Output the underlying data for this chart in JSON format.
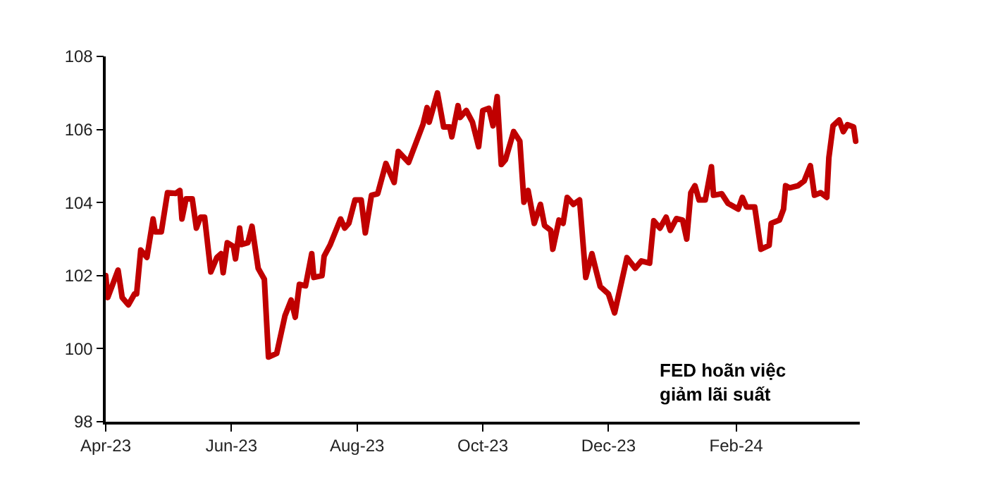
{
  "chart_data": {
    "type": "line",
    "x": [
      "2023-04-01",
      "2023-04-02",
      "2023-04-07",
      "2023-04-09",
      "2023-04-12",
      "2023-04-15",
      "2023-04-16",
      "2023-04-18",
      "2023-04-21",
      "2023-04-24",
      "2023-04-25",
      "2023-04-28",
      "2023-05-01",
      "2023-05-05",
      "2023-05-07",
      "2023-05-08",
      "2023-05-10",
      "2023-05-13",
      "2023-05-15",
      "2023-05-17",
      "2023-05-19",
      "2023-05-22",
      "2023-05-25",
      "2023-05-27",
      "2023-05-28",
      "2023-05-30",
      "2023-06-02",
      "2023-06-03",
      "2023-06-05",
      "2023-06-06",
      "2023-06-09",
      "2023-06-11",
      "2023-06-14",
      "2023-06-17",
      "2023-06-19",
      "2023-06-23",
      "2023-06-27",
      "2023-06-30",
      "2023-07-02",
      "2023-07-04",
      "2023-07-07",
      "2023-07-10",
      "2023-07-11",
      "2023-07-15",
      "2023-07-16",
      "2023-07-19",
      "2023-07-24",
      "2023-07-26",
      "2023-07-28",
      "2023-07-31",
      "2023-08-03",
      "2023-08-05",
      "2023-08-08",
      "2023-08-11",
      "2023-08-15",
      "2023-08-19",
      "2023-08-21",
      "2023-08-26",
      "2023-09-02",
      "2023-09-04",
      "2023-09-05",
      "2023-09-09",
      "2023-09-12",
      "2023-09-15",
      "2023-09-16",
      "2023-09-19",
      "2023-09-20",
      "2023-09-23",
      "2023-09-26",
      "2023-09-29",
      "2023-10-01",
      "2023-10-04",
      "2023-10-06",
      "2023-10-08",
      "2023-10-10",
      "2023-10-12",
      "2023-10-16",
      "2023-10-19",
      "2023-10-21",
      "2023-10-23",
      "2023-10-26",
      "2023-10-29",
      "2023-10-31",
      "2023-11-03",
      "2023-11-04",
      "2023-11-07",
      "2023-11-09",
      "2023-11-11",
      "2023-11-14",
      "2023-11-17",
      "2023-11-20",
      "2023-11-23",
      "2023-11-25",
      "2023-11-27",
      "2023-12-01",
      "2023-12-04",
      "2023-12-10",
      "2023-12-14",
      "2023-12-17",
      "2023-12-21",
      "2023-12-23",
      "2023-12-26",
      "2023-12-29",
      "2023-12-31",
      "2024-01-03",
      "2024-01-06",
      "2024-01-08",
      "2024-01-10",
      "2024-01-12",
      "2024-01-14",
      "2024-01-17",
      "2024-01-20",
      "2024-01-21",
      "2024-01-25",
      "2024-01-28",
      "2024-02-02",
      "2024-02-04",
      "2024-02-06",
      "2024-02-10",
      "2024-02-13",
      "2024-02-17",
      "2024-02-18",
      "2024-02-22",
      "2024-02-24",
      "2024-02-25",
      "2024-02-27",
      "2024-03-02",
      "2024-03-05",
      "2024-03-08",
      "2024-03-10",
      "2024-03-13",
      "2024-03-16",
      "2024-03-17",
      "2024-03-19",
      "2024-03-22",
      "2024-03-24",
      "2024-03-26",
      "2024-03-29",
      "2024-03-30"
    ],
    "series": [
      {
        "color": "#c00000",
        "values": [
          102.0,
          101.4,
          102.15,
          101.4,
          101.2,
          101.5,
          101.5,
          102.7,
          102.5,
          103.55,
          103.2,
          103.2,
          104.27,
          104.25,
          104.33,
          103.55,
          104.1,
          104.1,
          103.3,
          103.6,
          103.6,
          102.1,
          102.5,
          102.6,
          102.08,
          102.9,
          102.8,
          102.46,
          103.3,
          102.85,
          102.9,
          103.35,
          102.2,
          101.9,
          99.77,
          99.87,
          100.9,
          101.33,
          100.86,
          101.76,
          101.72,
          102.6,
          101.95,
          102.0,
          102.53,
          102.85,
          103.55,
          103.3,
          103.43,
          104.07,
          104.07,
          103.17,
          104.2,
          104.24,
          105.07,
          104.55,
          105.4,
          105.1,
          106.14,
          106.6,
          106.2,
          107.0,
          106.07,
          106.07,
          105.8,
          106.65,
          106.33,
          106.52,
          106.2,
          105.53,
          106.52,
          106.58,
          106.1,
          106.9,
          105.04,
          105.17,
          105.94,
          105.68,
          104.01,
          104.33,
          103.43,
          103.95,
          103.37,
          103.24,
          102.72,
          103.52,
          103.43,
          104.14,
          103.95,
          104.07,
          101.95,
          102.6,
          102.14,
          101.7,
          101.5,
          100.98,
          102.49,
          102.2,
          102.4,
          102.34,
          103.5,
          103.3,
          103.6,
          103.24,
          103.56,
          103.52,
          103.0,
          104.27,
          104.46,
          104.07,
          104.07,
          104.98,
          104.2,
          104.24,
          103.98,
          103.82,
          104.14,
          103.88,
          103.88,
          102.72,
          102.83,
          103.43,
          103.52,
          103.82,
          104.46,
          104.4,
          104.46,
          104.59,
          105.01,
          104.2,
          104.27,
          104.14,
          105.23,
          106.1,
          106.26,
          105.94,
          106.13,
          106.07,
          105.68
        ]
      }
    ],
    "xlim": [
      "2023-04-01",
      "2024-04-01"
    ],
    "xticks": [
      {
        "value": "2023-04-01",
        "label": "Apr-23"
      },
      {
        "value": "2023-06-01",
        "label": "Jun-23"
      },
      {
        "value": "2023-08-01",
        "label": "Aug-23"
      },
      {
        "value": "2023-10-01",
        "label": "Oct-23"
      },
      {
        "value": "2023-12-01",
        "label": "Dec-23"
      },
      {
        "value": "2024-02-01",
        "label": "Feb-24"
      }
    ],
    "ylim": [
      98,
      108
    ],
    "yticks": [
      98,
      100,
      102,
      104,
      106,
      108
    ],
    "line_style": "solid",
    "annotations": [
      "FED hoãn việc\ngiảm lãi suất"
    ]
  }
}
